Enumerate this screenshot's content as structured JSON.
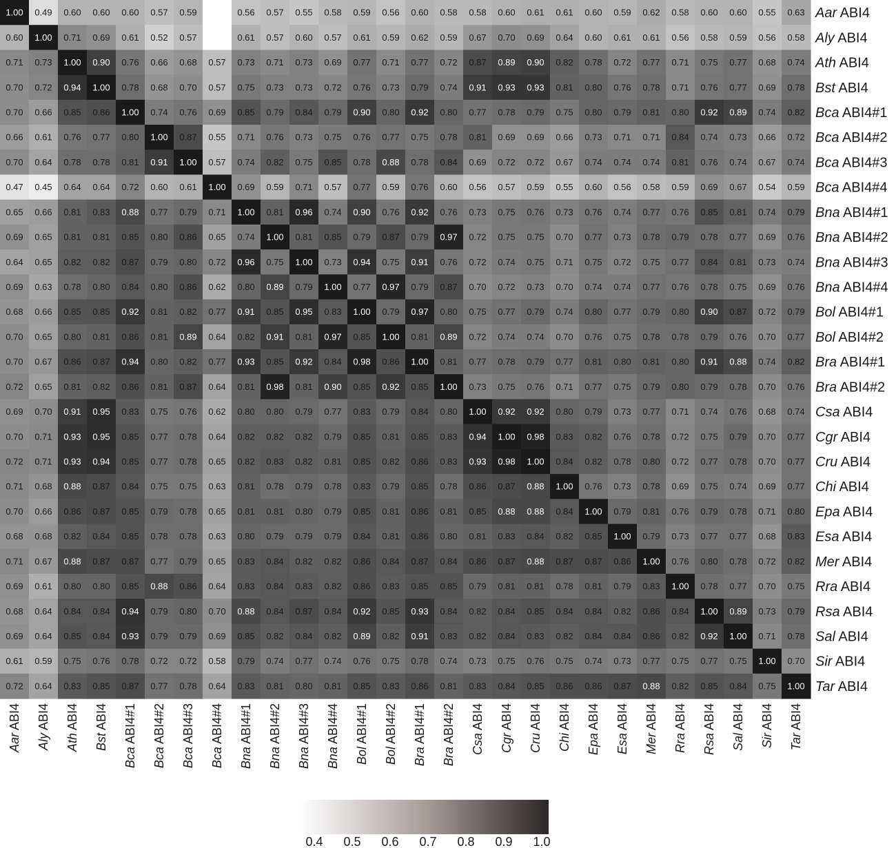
{
  "chart_data": {
    "type": "heatmap",
    "labels": [
      {
        "italic": "Aar",
        "rest": " ABI4"
      },
      {
        "italic": "Aly",
        "rest": " ABI4"
      },
      {
        "italic": "Ath",
        "rest": " ABI4"
      },
      {
        "italic": "Bst",
        "rest": " ABI4"
      },
      {
        "italic": "Bca",
        "rest": " ABI4#1"
      },
      {
        "italic": "Bca",
        "rest": " ABI4#2"
      },
      {
        "italic": "Bca",
        "rest": " ABI4#3"
      },
      {
        "italic": "Bca",
        "rest": " ABI4#4"
      },
      {
        "italic": "Bna",
        "rest": " ABI4#1"
      },
      {
        "italic": "Bna",
        "rest": " ABI4#2"
      },
      {
        "italic": "Bna",
        "rest": " ABI4#3"
      },
      {
        "italic": "Bna",
        "rest": " ABI4#4"
      },
      {
        "italic": "Bol",
        "rest": " ABI4#1"
      },
      {
        "italic": "Bol",
        "rest": " ABI4#2"
      },
      {
        "italic": "Bra",
        "rest": " ABI4#1"
      },
      {
        "italic": "Bra",
        "rest": " ABI4#2"
      },
      {
        "italic": "Csa",
        "rest": " ABI4"
      },
      {
        "italic": "Cgr",
        "rest": " ABI4"
      },
      {
        "italic": "Cru",
        "rest": " ABI4"
      },
      {
        "italic": "Chi",
        "rest": " ABI4"
      },
      {
        "italic": "Epa",
        "rest": " ABI4"
      },
      {
        "italic": "Esa",
        "rest": " ABI4"
      },
      {
        "italic": "Mer",
        "rest": " ABI4"
      },
      {
        "italic": "Rra",
        "rest": " ABI4"
      },
      {
        "italic": "Rsa",
        "rest": " ABI4"
      },
      {
        "italic": "Sal",
        "rest": " ABI4"
      },
      {
        "italic": "Sir",
        "rest": " ABI4"
      },
      {
        "italic": "Tar",
        "rest": " ABI4"
      }
    ],
    "values": [
      [
        "1.00",
        "0.49",
        "0.60",
        "0.60",
        "0.60",
        "0.57",
        "0.59",
        "0.40",
        "0.56",
        "0.57",
        "0.55",
        "0.58",
        "0.59",
        "0.56",
        "0.60",
        "0.58",
        "0.58",
        "0.60",
        "0.61",
        "0.61",
        "0.60",
        "0.59",
        "0.62",
        "0.58",
        "0.60",
        "0.60",
        "0.55",
        "0.63"
      ],
      [
        "0.60",
        "1.00",
        "0.71",
        "0.69",
        "0.61",
        "0.52",
        "0.57",
        "0.40",
        "0.61",
        "0.57",
        "0.60",
        "0.57",
        "0.61",
        "0.59",
        "0.62",
        "0.59",
        "0.67",
        "0.70",
        "0.69",
        "0.64",
        "0.60",
        "0.61",
        "0.61",
        "0.56",
        "0.58",
        "0.59",
        "0.56",
        "0.58"
      ],
      [
        "0.71",
        "0.73",
        "1.00",
        "0.90",
        "0.76",
        "0.66",
        "0.68",
        "0.57",
        "0.73",
        "0.71",
        "0.73",
        "0.69",
        "0.77",
        "0.71",
        "0.77",
        "0.72",
        "0.87",
        "0.89",
        "0.90",
        "0.82",
        "0.78",
        "0.72",
        "0.77",
        "0.71",
        "0.75",
        "0.77",
        "0.68",
        "0.74"
      ],
      [
        "0.70",
        "0.72",
        "0.94",
        "1.00",
        "0.78",
        "0.68",
        "0.70",
        "0.57",
        "0.75",
        "0.73",
        "0.73",
        "0.72",
        "0.76",
        "0.73",
        "0.79",
        "0.74",
        "0.91",
        "0.93",
        "0.93",
        "0.81",
        "0.80",
        "0.76",
        "0.78",
        "0.71",
        "0.76",
        "0.77",
        "0.69",
        "0.78"
      ],
      [
        "0.70",
        "0.66",
        "0.85",
        "0.86",
        "1.00",
        "0.74",
        "0.76",
        "0.69",
        "0.85",
        "0.79",
        "0.84",
        "0.79",
        "0.90",
        "0.80",
        "0.92",
        "0.80",
        "0.77",
        "0.78",
        "0.79",
        "0.75",
        "0.80",
        "0.79",
        "0.81",
        "0.80",
        "0.92",
        "0.89",
        "0.74",
        "0.82"
      ],
      [
        "0.66",
        "0.61",
        "0.76",
        "0.77",
        "0.80",
        "1.00",
        "0.87",
        "0.55",
        "0.71",
        "0.76",
        "0.73",
        "0.75",
        "0.76",
        "0.77",
        "0.75",
        "0.78",
        "0.81",
        "0.69",
        "0.69",
        "0.66",
        "0.73",
        "0.71",
        "0.71",
        "0.84",
        "0.74",
        "0.73",
        "0.66",
        "0.72"
      ],
      [
        "0.70",
        "0.64",
        "0.78",
        "0.78",
        "0.81",
        "0.91",
        "1.00",
        "0.57",
        "0.74",
        "0.82",
        "0.75",
        "0.85",
        "0.78",
        "0.88",
        "0.78",
        "0.84",
        "0.69",
        "0.72",
        "0.72",
        "0.67",
        "0.74",
        "0.74",
        "0.74",
        "0.81",
        "0.76",
        "0.74",
        "0.67",
        "0.74"
      ],
      [
        "0.47",
        "0.45",
        "0.64",
        "0.64",
        "0.72",
        "0.60",
        "0.61",
        "1.00",
        "0.69",
        "0.59",
        "0.71",
        "0.57",
        "0.77",
        "0.59",
        "0.76",
        "0.60",
        "0.56",
        "0.57",
        "0.59",
        "0.55",
        "0.60",
        "0.56",
        "0.58",
        "0.59",
        "0.69",
        "0.67",
        "0.54",
        "0.59"
      ],
      [
        "0.65",
        "0.66",
        "0.81",
        "0.83",
        "0.88",
        "0.77",
        "0.79",
        "0.71",
        "1.00",
        "0.81",
        "0.96",
        "0.74",
        "0.90",
        "0.76",
        "0.92",
        "0.76",
        "0.73",
        "0.75",
        "0.76",
        "0.73",
        "0.76",
        "0.74",
        "0.77",
        "0.76",
        "0.85",
        "0.81",
        "0.74",
        "0.79"
      ],
      [
        "0.69",
        "0.65",
        "0.81",
        "0.81",
        "0.85",
        "0.80",
        "0.86",
        "0.65",
        "0.74",
        "1.00",
        "0.81",
        "0.85",
        "0.79",
        "0.87",
        "0.79",
        "0.97",
        "0.72",
        "0.75",
        "0.75",
        "0.70",
        "0.77",
        "0.73",
        "0.78",
        "0.79",
        "0.78",
        "0.77",
        "0.69",
        "0.76"
      ],
      [
        "0.64",
        "0.65",
        "0.82",
        "0.82",
        "0.87",
        "0.79",
        "0.80",
        "0.72",
        "0.96",
        "0.75",
        "1.00",
        "0.73",
        "0.94",
        "0.75",
        "0.91",
        "0.76",
        "0.72",
        "0.74",
        "0.75",
        "0.71",
        "0.75",
        "0.72",
        "0.75",
        "0.77",
        "0.84",
        "0.81",
        "0.73",
        "0.74"
      ],
      [
        "0.69",
        "0.63",
        "0.78",
        "0.80",
        "0.84",
        "0.80",
        "0.86",
        "0.62",
        "0.80",
        "0.89",
        "0.79",
        "1.00",
        "0.77",
        "0.97",
        "0.79",
        "0.87",
        "0.70",
        "0.72",
        "0.73",
        "0.70",
        "0.74",
        "0.74",
        "0.77",
        "0.76",
        "0.78",
        "0.75",
        "0.69",
        "0.76"
      ],
      [
        "0.68",
        "0.66",
        "0.85",
        "0.85",
        "0.92",
        "0.81",
        "0.82",
        "0.77",
        "0.91",
        "0.85",
        "0.95",
        "0.83",
        "1.00",
        "0.79",
        "0.97",
        "0.80",
        "0.75",
        "0.77",
        "0.79",
        "0.74",
        "0.80",
        "0.77",
        "0.79",
        "0.80",
        "0.90",
        "0.87",
        "0.72",
        "0.79"
      ],
      [
        "0.70",
        "0.65",
        "0.80",
        "0.81",
        "0.86",
        "0.81",
        "0.89",
        "0.64",
        "0.82",
        "0.91",
        "0.81",
        "0.97",
        "0.85",
        "1.00",
        "0.81",
        "0.89",
        "0.72",
        "0.74",
        "0.74",
        "0.70",
        "0.76",
        "0.75",
        "0.78",
        "0.78",
        "0.79",
        "0.76",
        "0.70",
        "0.77"
      ],
      [
        "0.70",
        "0.67",
        "0.86",
        "0.87",
        "0.94",
        "0.80",
        "0.82",
        "0.77",
        "0.93",
        "0.85",
        "0.92",
        "0.84",
        "0.98",
        "0.86",
        "1.00",
        "0.81",
        "0.77",
        "0.78",
        "0.79",
        "0.77",
        "0.81",
        "0.80",
        "0.81",
        "0.80",
        "0.91",
        "0.88",
        "0.74",
        "0.82"
      ],
      [
        "0.72",
        "0.65",
        "0.81",
        "0.82",
        "0.86",
        "0.81",
        "0.87",
        "0.64",
        "0.81",
        "0.98",
        "0.81",
        "0.90",
        "0.85",
        "0.92",
        "0.85",
        "1.00",
        "0.73",
        "0.75",
        "0.76",
        "0.71",
        "0.77",
        "0.75",
        "0.79",
        "0.80",
        "0.79",
        "0.78",
        "0.70",
        "0.76"
      ],
      [
        "0.69",
        "0.70",
        "0.91",
        "0.95",
        "0.83",
        "0.75",
        "0.76",
        "0.62",
        "0.80",
        "0.80",
        "0.79",
        "0.77",
        "0.83",
        "0.79",
        "0.84",
        "0.80",
        "1.00",
        "0.92",
        "0.92",
        "0.80",
        "0.79",
        "0.73",
        "0.77",
        "0.71",
        "0.74",
        "0.76",
        "0.68",
        "0.74"
      ],
      [
        "0.70",
        "0.71",
        "0.93",
        "0.95",
        "0.85",
        "0.77",
        "0.78",
        "0.64",
        "0.82",
        "0.82",
        "0.82",
        "0.79",
        "0.85",
        "0.81",
        "0.85",
        "0.83",
        "0.94",
        "1.00",
        "0.98",
        "0.83",
        "0.82",
        "0.76",
        "0.78",
        "0.72",
        "0.75",
        "0.79",
        "0.70",
        "0.77"
      ],
      [
        "0.72",
        "0.71",
        "0.93",
        "0.94",
        "0.85",
        "0.77",
        "0.78",
        "0.65",
        "0.82",
        "0.83",
        "0.82",
        "0.81",
        "0.85",
        "0.82",
        "0.86",
        "0.83",
        "0.93",
        "0.98",
        "1.00",
        "0.84",
        "0.82",
        "0.78",
        "0.80",
        "0.72",
        "0.77",
        "0.78",
        "0.70",
        "0.77"
      ],
      [
        "0.71",
        "0.68",
        "0.88",
        "0.87",
        "0.84",
        "0.75",
        "0.75",
        "0.63",
        "0.81",
        "0.78",
        "0.79",
        "0.78",
        "0.83",
        "0.79",
        "0.85",
        "0.78",
        "0.86",
        "0.87",
        "0.88",
        "1.00",
        "0.76",
        "0.73",
        "0.78",
        "0.69",
        "0.75",
        "0.74",
        "0.69",
        "0.77"
      ],
      [
        "0.70",
        "0.66",
        "0.86",
        "0.87",
        "0.85",
        "0.79",
        "0.78",
        "0.65",
        "0.81",
        "0.81",
        "0.80",
        "0.79",
        "0.85",
        "0.81",
        "0.86",
        "0.81",
        "0.85",
        "0.88",
        "0.88",
        "0.84",
        "1.00",
        "0.79",
        "0.81",
        "0.76",
        "0.79",
        "0.78",
        "0.71",
        "0.80"
      ],
      [
        "0.68",
        "0.68",
        "0.82",
        "0.84",
        "0.85",
        "0.78",
        "0.78",
        "0.63",
        "0.80",
        "0.79",
        "0.79",
        "0.79",
        "0.84",
        "0.81",
        "0.86",
        "0.80",
        "0.81",
        "0.83",
        "0.84",
        "0.82",
        "0.85",
        "1.00",
        "0.79",
        "0.73",
        "0.77",
        "0.77",
        "0.68",
        "0.83"
      ],
      [
        "0.71",
        "0.67",
        "0.88",
        "0.87",
        "0.87",
        "0.77",
        "0.79",
        "0.65",
        "0.83",
        "0.84",
        "0.82",
        "0.82",
        "0.86",
        "0.84",
        "0.87",
        "0.84",
        "0.86",
        "0.87",
        "0.88",
        "0.87",
        "0.87",
        "0.86",
        "1.00",
        "0.76",
        "0.80",
        "0.78",
        "0.72",
        "0.82"
      ],
      [
        "0.69",
        "0.61",
        "0.80",
        "0.80",
        "0.85",
        "0.88",
        "0.86",
        "0.64",
        "0.83",
        "0.84",
        "0.83",
        "0.82",
        "0.86",
        "0.83",
        "0.85",
        "0.85",
        "0.79",
        "0.81",
        "0.81",
        "0.78",
        "0.81",
        "0.79",
        "0.83",
        "1.00",
        "0.78",
        "0.77",
        "0.70",
        "0.75"
      ],
      [
        "0.68",
        "0.64",
        "0.84",
        "0.84",
        "0.94",
        "0.79",
        "0.80",
        "0.70",
        "0.88",
        "0.84",
        "0.87",
        "0.84",
        "0.92",
        "0.85",
        "0.93",
        "0.84",
        "0.82",
        "0.84",
        "0.85",
        "0.84",
        "0.84",
        "0.82",
        "0.86",
        "0.84",
        "1.00",
        "0.89",
        "0.73",
        "0.79"
      ],
      [
        "0.69",
        "0.64",
        "0.85",
        "0.84",
        "0.93",
        "0.79",
        "0.79",
        "0.69",
        "0.85",
        "0.82",
        "0.84",
        "0.82",
        "0.89",
        "0.82",
        "0.91",
        "0.83",
        "0.82",
        "0.84",
        "0.83",
        "0.82",
        "0.84",
        "0.84",
        "0.86",
        "0.82",
        "0.92",
        "1.00",
        "0.71",
        "0.78"
      ],
      [
        "0.61",
        "0.59",
        "0.75",
        "0.76",
        "0.78",
        "0.72",
        "0.72",
        "0.58",
        "0.79",
        "0.74",
        "0.77",
        "0.74",
        "0.76",
        "0.75",
        "0.78",
        "0.74",
        "0.73",
        "0.75",
        "0.76",
        "0.75",
        "0.74",
        "0.73",
        "0.77",
        "0.75",
        "0.77",
        "0.75",
        "1.00",
        "0.70"
      ],
      [
        "0.72",
        "0.64",
        "0.83",
        "0.85",
        "0.87",
        "0.77",
        "0.78",
        "0.64",
        "0.83",
        "0.81",
        "0.80",
        "0.81",
        "0.85",
        "0.83",
        "0.86",
        "0.81",
        "0.83",
        "0.84",
        "0.85",
        "0.86",
        "0.86",
        "0.87",
        "0.88",
        "0.82",
        "0.85",
        "0.84",
        "0.75",
        "1.00"
      ]
    ],
    "color_scale": {
      "min": 0.4,
      "max": 1.0,
      "low_color": "#ffffff",
      "high_color": "#1a1a1a",
      "legend_gradient": [
        "#ffffff",
        "#a79d9b",
        "#2c2727"
      ],
      "light_text": "#ffffff",
      "dark_text": "#1a1a1a"
    },
    "colorbar_ticks": [
      "0.4",
      "0.5",
      "0.6",
      "0.7",
      "0.8",
      "0.9",
      "1.0"
    ]
  }
}
